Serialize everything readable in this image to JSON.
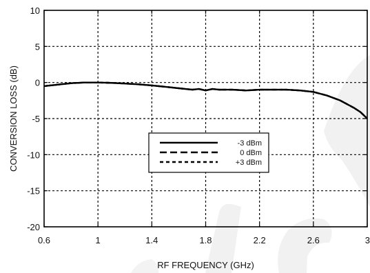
{
  "chart_data": {
    "type": "line",
    "xlabel": "RF FREQUENCY (GHz)",
    "ylabel": "CONVERSION LOSS (dB)",
    "xlim": [
      0.6,
      3
    ],
    "ylim": [
      -20,
      10
    ],
    "xticks": [
      0.6,
      1,
      1.4,
      1.8,
      2.2,
      2.6,
      3
    ],
    "xtick_labels": [
      "0.6",
      "1",
      "1.4",
      "1.8",
      "2.2",
      "2.6",
      "3"
    ],
    "yticks": [
      10,
      5,
      0,
      -5,
      -10,
      -15,
      -20
    ],
    "ytick_labels": [
      "10",
      "5",
      "0",
      "-5",
      "-10",
      "-15",
      "-20"
    ],
    "grid": true,
    "legend_position": "center",
    "series": [
      {
        "name": "-3 dBm",
        "style": "solid",
        "x": [
          0.6,
          0.7,
          0.8,
          0.9,
          1.0,
          1.1,
          1.2,
          1.3,
          1.4,
          1.5,
          1.6,
          1.7,
          1.75,
          1.8,
          1.85,
          1.9,
          2.0,
          2.1,
          2.2,
          2.3,
          2.4,
          2.5,
          2.6,
          2.7,
          2.8,
          2.85,
          2.9,
          2.95,
          3.0
        ],
        "values": [
          -0.5,
          -0.3,
          -0.1,
          0.0,
          0.0,
          -0.05,
          -0.15,
          -0.25,
          -0.4,
          -0.6,
          -0.8,
          -1.0,
          -0.9,
          -1.1,
          -0.9,
          -1.0,
          -1.0,
          -1.1,
          -1.0,
          -1.0,
          -1.0,
          -1.1,
          -1.3,
          -1.8,
          -2.5,
          -3.0,
          -3.5,
          -4.1,
          -5.0
        ]
      },
      {
        "name": "0 dBm",
        "style": "long-dash",
        "x": [
          0.6,
          0.7,
          0.8,
          0.9,
          1.0,
          1.1,
          1.2,
          1.3,
          1.4,
          1.5,
          1.6,
          1.7,
          1.75,
          1.8,
          1.85,
          1.9,
          2.0,
          2.1,
          2.2,
          2.3,
          2.4,
          2.5,
          2.6,
          2.7,
          2.8,
          2.85,
          2.9,
          2.95,
          3.0
        ],
        "values": [
          -0.5,
          -0.3,
          -0.1,
          0.0,
          0.0,
          -0.05,
          -0.15,
          -0.25,
          -0.4,
          -0.6,
          -0.8,
          -1.0,
          -0.9,
          -1.1,
          -0.9,
          -1.0,
          -1.0,
          -1.1,
          -1.0,
          -1.0,
          -1.0,
          -1.1,
          -1.3,
          -1.8,
          -2.5,
          -3.0,
          -3.5,
          -4.1,
          -5.0
        ]
      },
      {
        "name": "+3 dBm",
        "style": "short-dash",
        "x": [
          0.6,
          0.7,
          0.8,
          0.9,
          1.0,
          1.1,
          1.2,
          1.3,
          1.4,
          1.5,
          1.6,
          1.7,
          1.75,
          1.8,
          1.85,
          1.9,
          2.0,
          2.1,
          2.2,
          2.3,
          2.4,
          2.5,
          2.6,
          2.7,
          2.8,
          2.85,
          2.9,
          2.95,
          3.0
        ],
        "values": [
          -0.5,
          -0.3,
          -0.1,
          0.0,
          0.0,
          -0.05,
          -0.15,
          -0.25,
          -0.4,
          -0.6,
          -0.8,
          -1.0,
          -0.9,
          -1.1,
          -0.9,
          -1.0,
          -1.0,
          -1.1,
          -1.0,
          -1.0,
          -1.0,
          -1.1,
          -1.3,
          -1.8,
          -2.5,
          -3.0,
          -3.5,
          -4.1,
          -5.0
        ]
      }
    ]
  }
}
